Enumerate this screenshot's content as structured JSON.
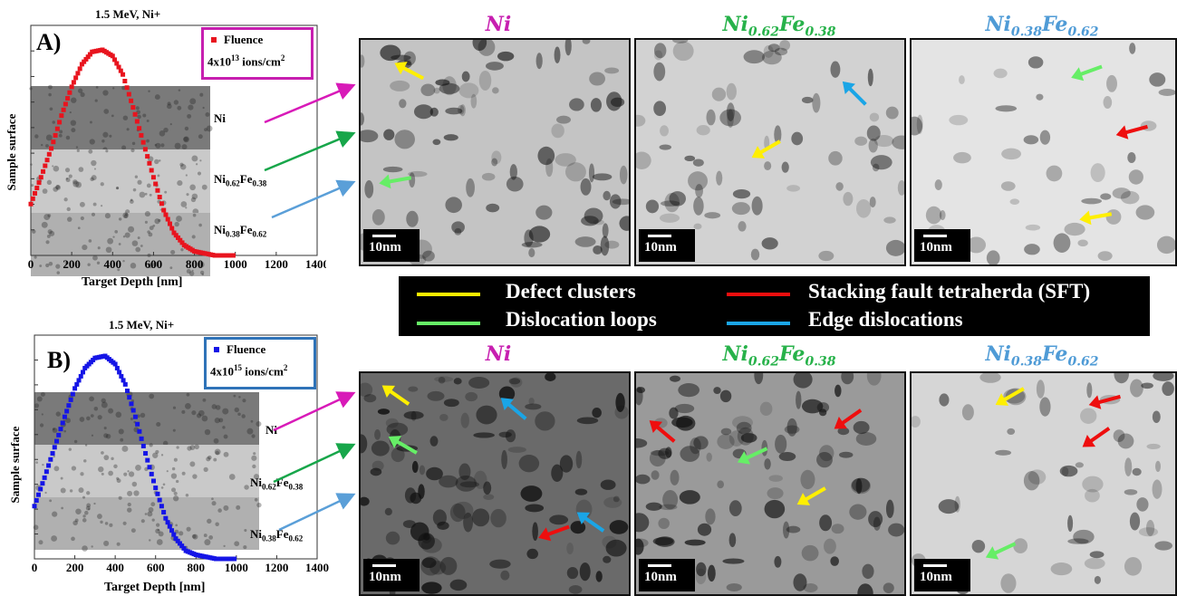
{
  "panelA": {
    "title": "1.5 MeV, Ni+",
    "letter": "A)",
    "legend_series": "Fluence",
    "fluence_value": "4x10",
    "fluence_exp": "13",
    "fluence_unit": " ions/cm",
    "fluence_unit_exp": "2",
    "ylabel": "Sample surface",
    "xlabel": "Target Depth [nm]",
    "xticks": [
      "0",
      "200",
      "400",
      "600",
      "800",
      "1000",
      "1200",
      "1400"
    ],
    "bands": [
      "Ni",
      "Ni",
      "0.62",
      "Fe",
      "0.38",
      "Ni",
      "0.38",
      "Fe",
      "0.62"
    ],
    "curve_color": "#e8141e",
    "box_color": "#c71fb0"
  },
  "panelB": {
    "title": "1.5 MeV, Ni+",
    "letter": "B)",
    "legend_series": "Fluence",
    "fluence_value": "4x10",
    "fluence_exp": "15",
    "fluence_unit": " ions/cm",
    "fluence_unit_exp": "2",
    "ylabel": "Sample surface",
    "xlabel": "Target Depth [nm]",
    "xticks": [
      "0",
      "200",
      "400",
      "600",
      "800",
      "1000",
      "1200",
      "1400"
    ],
    "curve_color": "#1515e6",
    "box_color": "#2f73b8"
  },
  "headers": {
    "ni": "Ni",
    "nife62_a": "Ni",
    "nife62_a_sub": "0.62",
    "nife62_b": "Fe",
    "nife62_b_sub": "0.38",
    "nife38_a": "Ni",
    "nife38_a_sub": "0.38",
    "nife38_b": "Fe",
    "nife38_b_sub": "0.62",
    "color_ni": "#c71fb0",
    "color_nife62": "#27b24a",
    "color_nife38": "#4f9bd6"
  },
  "scale_label": "10nm",
  "legend": {
    "defect_clusters": "Defect clusters",
    "dislocation_loops": "Dislocation loops",
    "sft": "Stacking fault tetraherda (SFT)",
    "edge": "Edge dislocations",
    "yellow": "#ffef00",
    "green": "#66ee66",
    "red": "#ee0e0e",
    "blue": "#1aa5e6"
  },
  "chart_data": [
    {
      "type": "scatter",
      "title": "1.5 MeV, Ni+",
      "xlabel": "Target Depth [nm]",
      "ylabel": "Sample surface",
      "xlim": [
        0,
        1400
      ],
      "series": [
        {
          "name": "Fluence",
          "x": [
            0,
            50,
            100,
            150,
            200,
            250,
            300,
            350,
            400,
            450,
            500,
            550,
            600,
            650,
            700,
            750,
            800,
            850,
            900,
            950,
            1000
          ],
          "y": [
            0.25,
            0.38,
            0.52,
            0.68,
            0.82,
            0.93,
            0.99,
            1.0,
            0.97,
            0.88,
            0.72,
            0.55,
            0.38,
            0.22,
            0.11,
            0.05,
            0.02,
            0.01,
            0.0,
            0.0,
            0.0
          ]
        }
      ],
      "legend": "top-right"
    },
    {
      "type": "scatter",
      "title": "1.5 MeV, Ni+",
      "xlabel": "Target Depth [nm]",
      "ylabel": "Sample surface",
      "xlim": [
        0,
        1400
      ],
      "series": [
        {
          "name": "Fluence",
          "x": [
            0,
            50,
            100,
            150,
            200,
            250,
            300,
            350,
            400,
            450,
            500,
            550,
            600,
            650,
            700,
            750,
            800,
            850,
            900,
            950,
            1000
          ],
          "y": [
            0.26,
            0.4,
            0.55,
            0.7,
            0.84,
            0.94,
            0.99,
            1.0,
            0.96,
            0.86,
            0.7,
            0.52,
            0.35,
            0.2,
            0.1,
            0.04,
            0.02,
            0.01,
            0.0,
            0.0,
            0.0
          ]
        }
      ],
      "legend": "top-right"
    }
  ]
}
